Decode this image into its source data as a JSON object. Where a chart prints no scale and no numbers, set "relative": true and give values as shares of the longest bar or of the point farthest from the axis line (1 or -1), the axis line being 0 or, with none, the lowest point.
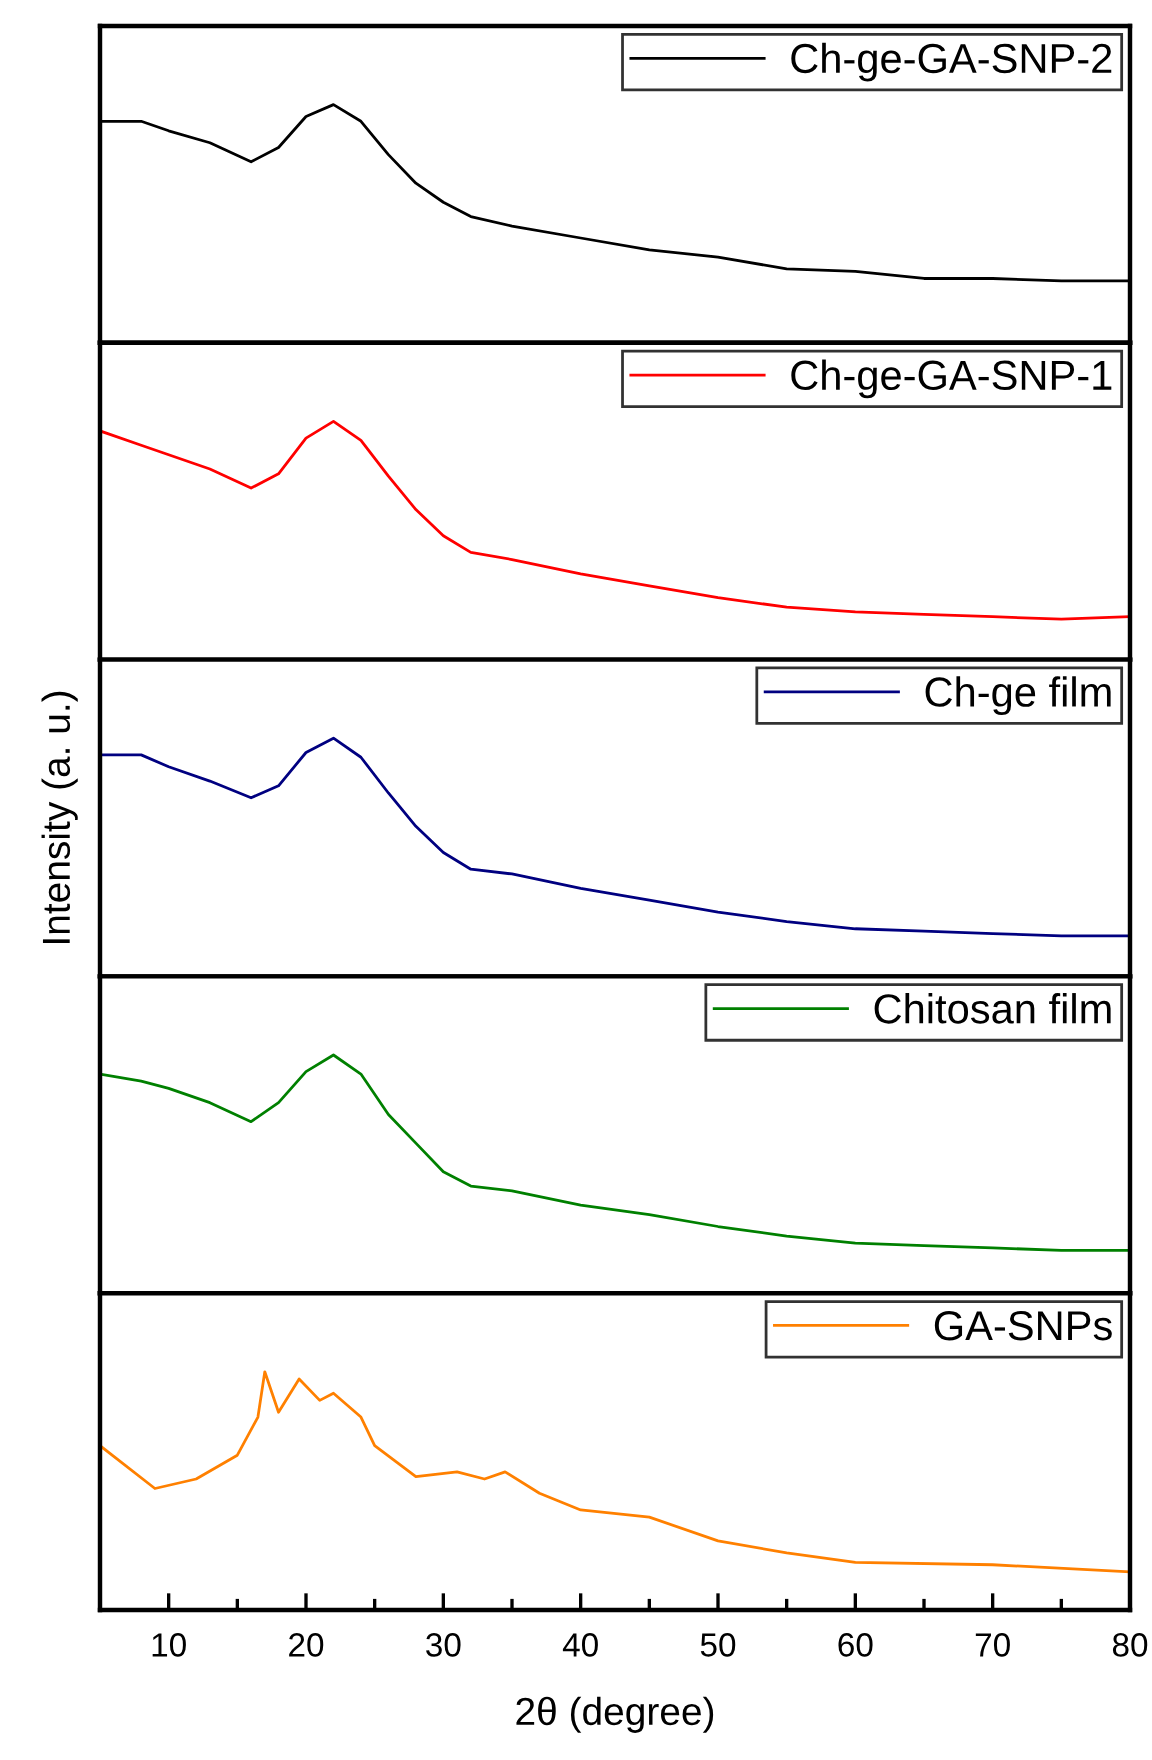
{
  "chart_data": [
    {
      "type": "line",
      "relative": true,
      "xlim": [
        5,
        80
      ],
      "tick_labels": false,
      "legend": "top right",
      "series": [
        {
          "name": "Ch-ge-GA-SNP-2",
          "color": "#000000",
          "x": [
            5,
            8,
            10,
            13,
            16,
            18,
            20,
            22,
            24,
            26,
            28,
            30,
            32,
            35,
            40,
            45,
            50,
            55,
            60,
            65,
            70,
            75,
            80
          ],
          "values": [
            0.93,
            0.93,
            0.89,
            0.84,
            0.76,
            0.82,
            0.95,
            1.0,
            0.93,
            0.79,
            0.67,
            0.59,
            0.53,
            0.49,
            0.44,
            0.39,
            0.36,
            0.31,
            0.3,
            0.27,
            0.27,
            0.26,
            0.26
          ]
        }
      ]
    },
    {
      "type": "line",
      "relative": true,
      "xlim": [
        5,
        80
      ],
      "tick_labels": false,
      "legend": "top right",
      "series": [
        {
          "name": "Ch-ge-GA-SNP-1",
          "color": "#ff0000",
          "x": [
            5,
            8,
            10,
            13,
            16,
            18,
            20,
            22,
            24,
            26,
            28,
            30,
            32,
            35,
            40,
            45,
            50,
            55,
            60,
            65,
            70,
            75,
            80
          ],
          "values": [
            0.96,
            0.9,
            0.86,
            0.8,
            0.72,
            0.78,
            0.93,
            1.0,
            0.92,
            0.77,
            0.63,
            0.52,
            0.45,
            0.42,
            0.36,
            0.31,
            0.26,
            0.22,
            0.2,
            0.19,
            0.18,
            0.17,
            0.18
          ]
        }
      ]
    },
    {
      "type": "line",
      "relative": true,
      "xlim": [
        5,
        80
      ],
      "tick_labels": false,
      "legend": "top right",
      "ylabel": "Intensity (a. u.)",
      "series": [
        {
          "name": "Ch-ge film",
          "color": "#000080",
          "x": [
            5,
            8,
            10,
            13,
            16,
            18,
            20,
            22,
            24,
            26,
            28,
            30,
            32,
            35,
            40,
            45,
            50,
            55,
            60,
            65,
            70,
            75,
            80
          ],
          "values": [
            0.93,
            0.93,
            0.88,
            0.82,
            0.75,
            0.8,
            0.94,
            1.0,
            0.92,
            0.77,
            0.63,
            0.52,
            0.45,
            0.43,
            0.37,
            0.32,
            0.27,
            0.23,
            0.2,
            0.19,
            0.18,
            0.17,
            0.17
          ]
        }
      ]
    },
    {
      "type": "line",
      "relative": true,
      "xlim": [
        5,
        80
      ],
      "tick_labels": false,
      "legend": "top right",
      "series": [
        {
          "name": "Chitosan film",
          "color": "#008000",
          "x": [
            5,
            8,
            10,
            13,
            16,
            18,
            20,
            22,
            24,
            26,
            28,
            30,
            32,
            35,
            40,
            45,
            50,
            55,
            60,
            65,
            70,
            75,
            80
          ],
          "values": [
            0.92,
            0.89,
            0.86,
            0.8,
            0.72,
            0.8,
            0.93,
            1.0,
            0.92,
            0.75,
            0.63,
            0.51,
            0.45,
            0.43,
            0.37,
            0.33,
            0.28,
            0.24,
            0.21,
            0.2,
            0.19,
            0.18,
            0.18
          ]
        }
      ]
    },
    {
      "type": "line",
      "relative": true,
      "xlim": [
        5,
        80
      ],
      "tick_labels": "x",
      "legend": "top right",
      "xlabel": "2θ (degree)",
      "xticks": [
        10,
        {
          "value": 15,
          "label": null
        },
        20,
        {
          "value": 25,
          "label": null
        },
        30,
        {
          "value": 35,
          "label": null
        },
        40,
        {
          "value": 45,
          "label": null
        },
        50,
        {
          "value": 55,
          "label": null
        },
        60,
        {
          "value": 65,
          "label": null
        },
        70,
        {
          "value": 75,
          "label": null
        },
        80
      ],
      "series": [
        {
          "name": "GA-SNPs",
          "color": "#ff8000",
          "x": [
            5,
            9,
            12,
            15,
            16.5,
            17,
            18,
            19.5,
            21,
            22,
            24,
            25,
            28,
            31,
            33,
            34.5,
            37,
            40,
            45,
            50,
            55,
            60,
            70,
            80
          ],
          "values": [
            0.69,
            0.51,
            0.55,
            0.65,
            0.81,
            1.0,
            0.83,
            0.97,
            0.88,
            0.91,
            0.81,
            0.69,
            0.56,
            0.58,
            0.55,
            0.58,
            0.49,
            0.42,
            0.39,
            0.29,
            0.24,
            0.2,
            0.19,
            0.16
          ]
        }
      ]
    }
  ]
}
